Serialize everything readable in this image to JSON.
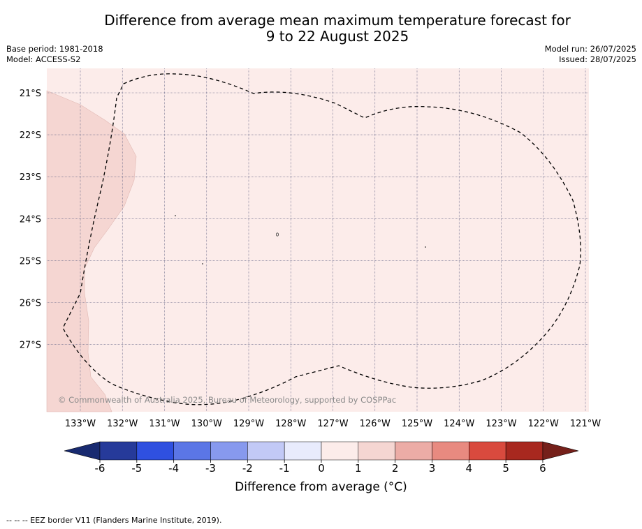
{
  "title_line1": "Difference from average mean maximum temperature forecast for",
  "title_line2": "9 to 22 August 2025",
  "meta_left": {
    "base_period": "Base period: 1981-2018",
    "model": "Model: ACCESS-S2"
  },
  "meta_right": {
    "model_run": "Model run: 26/07/2025",
    "issued": "Issued: 28/07/2025"
  },
  "map": {
    "lat_labels": [
      "21°S",
      "22°S",
      "23°S",
      "24°S",
      "25°S",
      "26°S",
      "27°S"
    ],
    "lon_labels": [
      "133°W",
      "132°W",
      "131°W",
      "130°W",
      "129°W",
      "128°W",
      "127°W",
      "126°W",
      "125°W",
      "124°W",
      "123°W",
      "122°W",
      "121°W"
    ],
    "copyright": "© Commonwealth of Australia 2025, Bureau of Meteorology, supported by COSPPac",
    "colors": {
      "anomaly_0_1": "#fcecea",
      "anomaly_1_2": "#f5d6d2",
      "gridline": "#6a6a8a"
    }
  },
  "colorbar": {
    "ticks": [
      "-6",
      "-5",
      "-4",
      "-3",
      "-2",
      "-1",
      "0",
      "1",
      "2",
      "3",
      "4",
      "5",
      "6"
    ],
    "colors": [
      "#263a9a",
      "#2f50e0",
      "#5b76e6",
      "#8799ee",
      "#c2c9f6",
      "#e8ebfc",
      "#fcecea",
      "#f5d6d2",
      "#ecaca6",
      "#e88a80",
      "#d94a3e",
      "#a8281f"
    ],
    "under_color": "#182a70",
    "over_color": "#75201a",
    "label": "Difference from average (°C)"
  },
  "footnote": "--  --  -- EEZ border V11 (Flanders Marine Institute, 2019)."
}
